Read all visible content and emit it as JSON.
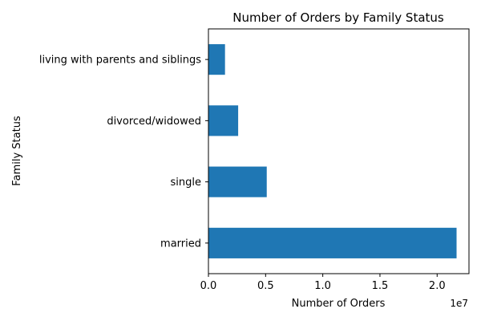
{
  "chart_data": {
    "type": "bar",
    "orientation": "horizontal",
    "title": "Number of Orders by Family Status",
    "xlabel": "Number of Orders",
    "ylabel": "Family Status",
    "x_scale_label": "1e7",
    "categories": [
      "married",
      "single",
      "divorced/widowed",
      "living with parents and siblings"
    ],
    "values": [
      21700000,
      5100000,
      2600000,
      1450000
    ],
    "xlim": [
      0,
      22785000
    ],
    "xticks": [
      0,
      5000000,
      10000000,
      15000000,
      20000000
    ],
    "xtick_labels": [
      "0.0",
      "0.5",
      "1.0",
      "1.5",
      "2.0"
    ],
    "bar_color": "#1f77b4",
    "grid": false,
    "legend": "none"
  }
}
